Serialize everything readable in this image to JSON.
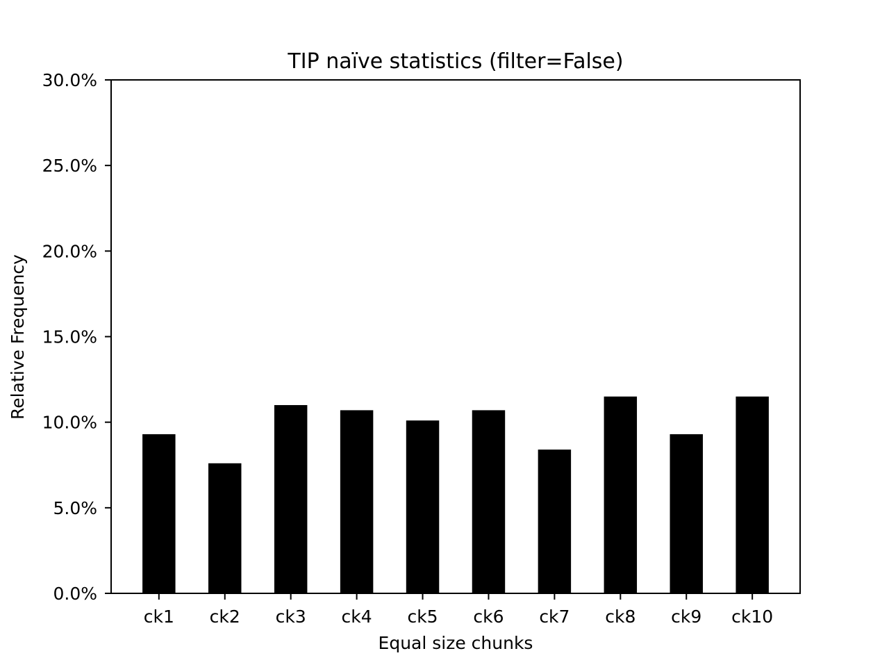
{
  "chart_data": {
    "type": "bar",
    "title": "TIP naïve statistics (filter=False)",
    "xlabel": "Equal size chunks",
    "ylabel": "Relative Frequency",
    "categories": [
      "ck1",
      "ck2",
      "ck3",
      "ck4",
      "ck5",
      "ck6",
      "ck7",
      "ck8",
      "ck9",
      "ck10"
    ],
    "values": [
      9.3,
      7.6,
      11.0,
      10.7,
      10.1,
      10.7,
      8.4,
      11.5,
      9.3,
      11.5
    ],
    "ylim": [
      0,
      30
    ],
    "yticks": [
      0,
      5,
      10,
      15,
      20,
      25,
      30
    ],
    "ytick_labels": [
      "0.0%",
      "5.0%",
      "10.0%",
      "15.0%",
      "20.0%",
      "25.0%",
      "30.0%"
    ],
    "grid": false,
    "legend": "none",
    "bar_color": "#000000"
  }
}
